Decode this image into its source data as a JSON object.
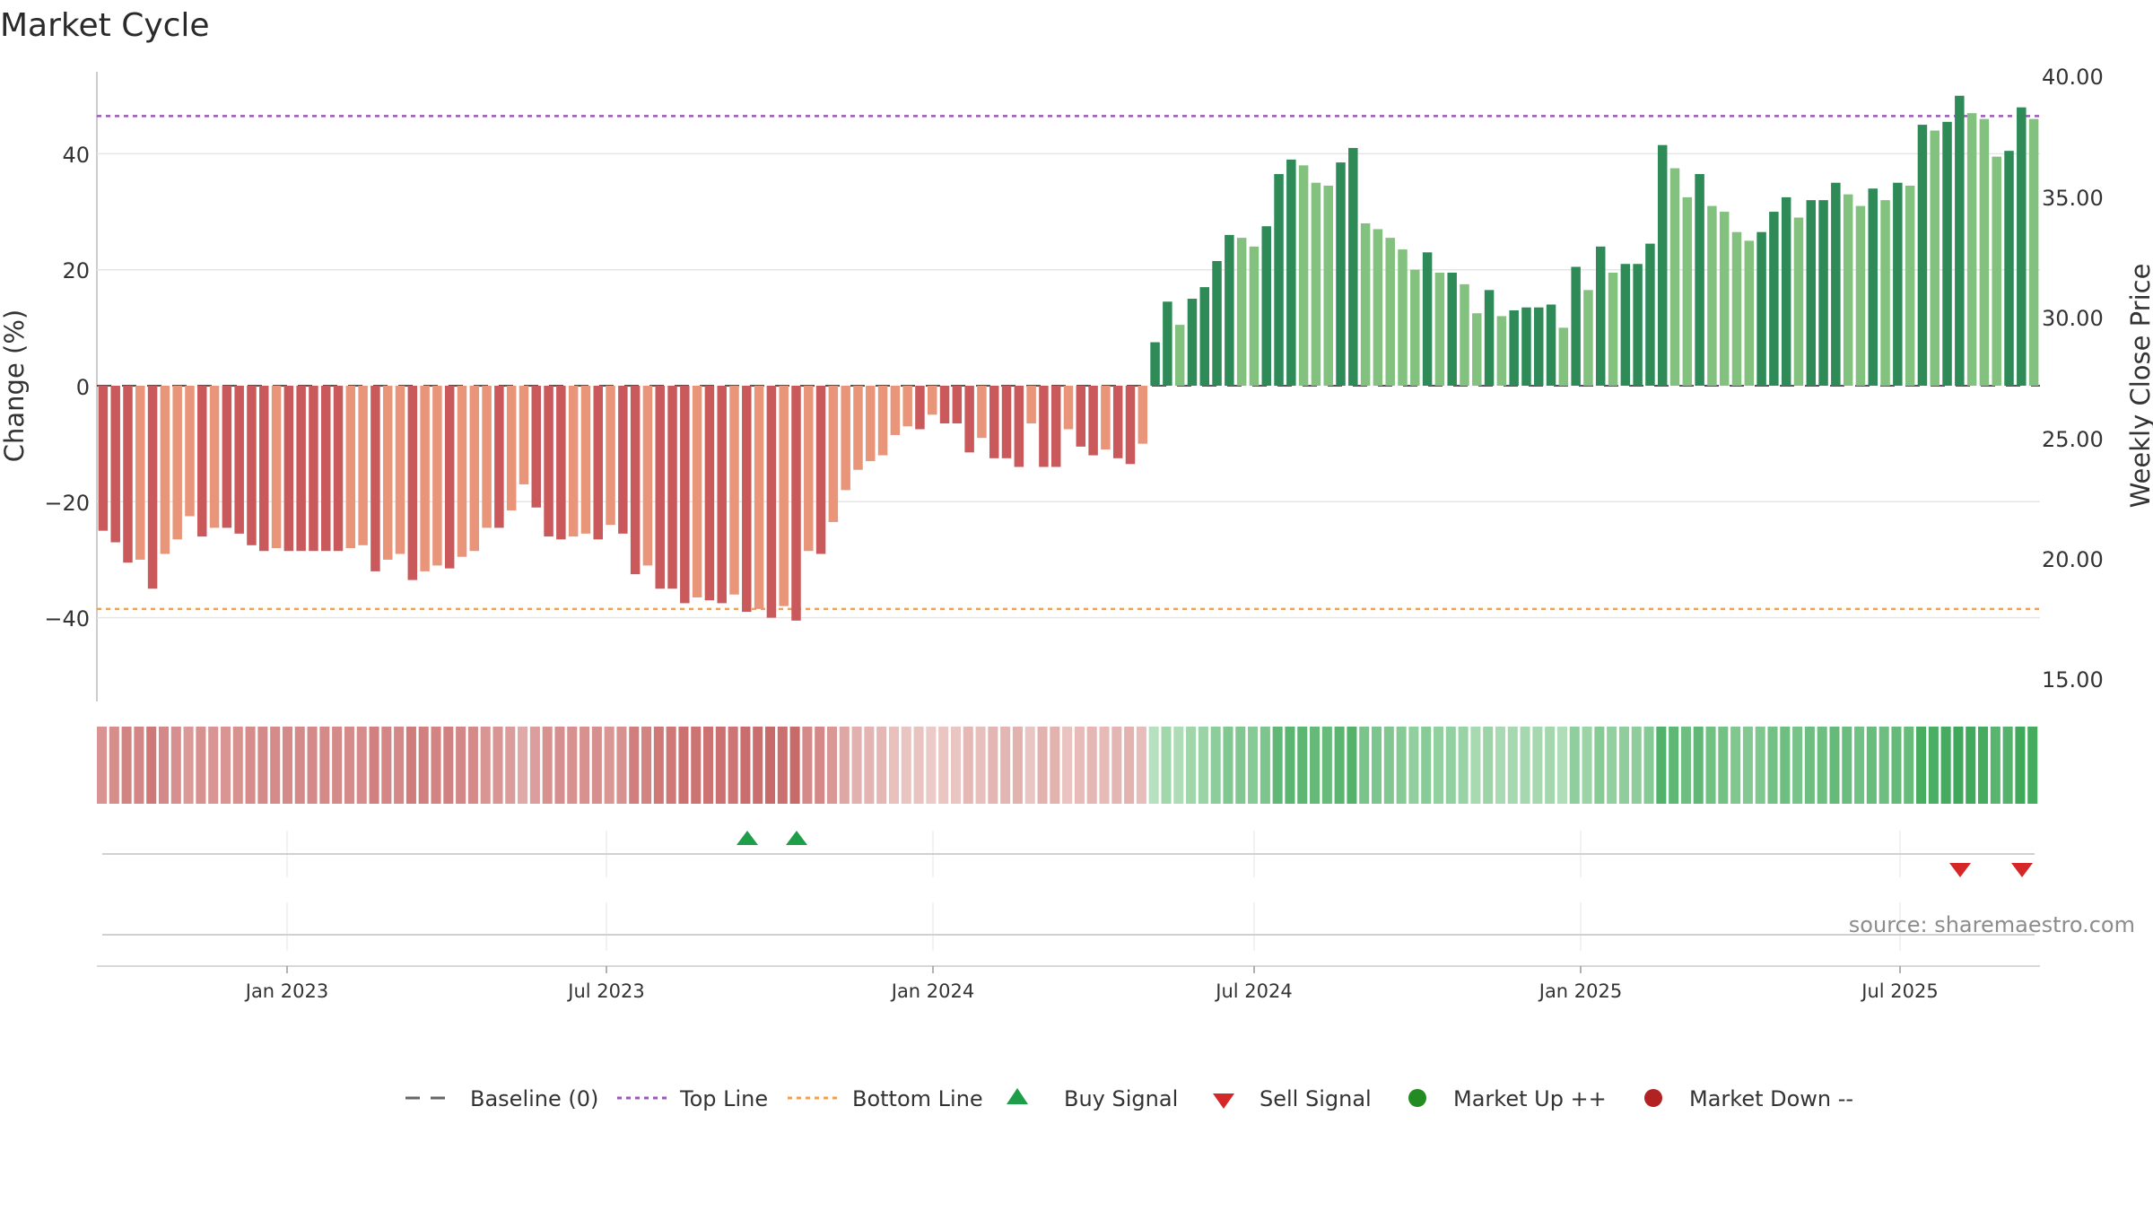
{
  "chart_data": {
    "type": "bar",
    "title": "Market Cycle",
    "ylabel_left": "Change (%)",
    "ylabel_right": "Weekly Close Price",
    "ylim_left": [
      -54,
      54
    ],
    "ylim_right": [
      15,
      40
    ],
    "yticks_left": [
      "40",
      "20",
      "0",
      "−20",
      "−40"
    ],
    "yticks_right": [
      "40.00",
      "35.00",
      "30.00",
      "25.00",
      "20.00",
      "15.00"
    ],
    "x_ticks": [
      "Jan 2023",
      "Jul 2023",
      "Jan 2024",
      "Jul 2024",
      "Jan 2025",
      "Jul 2025"
    ],
    "reference_lines": {
      "baseline": 0,
      "top_line": 46.5,
      "bottom_line": -38.5
    },
    "grid": true,
    "source": "source: sharemaestro.com",
    "weekly_change_pct": [
      -25,
      -27,
      -30.5,
      -30,
      -35,
      -29,
      -26.5,
      -22.5,
      -26,
      -24.5,
      -24.5,
      -25.5,
      -27.5,
      -28.5,
      -28,
      -28.5,
      -28.5,
      -28.5,
      -28.5,
      -28.5,
      -28,
      -27.5,
      -32,
      -30,
      -29,
      -33.5,
      -32,
      -31,
      -31.5,
      -29.5,
      -28.5,
      -24.5,
      -24.5,
      -21.5,
      -17,
      -21,
      -26,
      -26.5,
      -26,
      -25.5,
      -26.5,
      -24,
      -25.5,
      -32.5,
      -31,
      -35,
      -35,
      -37.5,
      -36.5,
      -37,
      -37.5,
      -36,
      -39,
      -38.5,
      -40,
      -38,
      -40.5,
      -28.5,
      -29,
      -23.5,
      -18,
      -14.5,
      -13,
      -12,
      -8.5,
      -7,
      -7.5,
      -5,
      -6.5,
      -6.5,
      -11.5,
      -9,
      -12.5,
      -12.5,
      -14,
      -6.5,
      -14,
      -14,
      -7.5,
      -10.5,
      -12,
      -11,
      -12.5,
      -13.5,
      -10,
      7.5,
      14.5,
      10.5,
      15,
      17,
      21.5,
      26,
      25.5,
      24,
      27.5,
      36.5,
      39,
      38,
      35,
      34.5,
      38.5,
      41,
      28,
      27,
      25.5,
      23.5,
      20,
      23,
      19.5,
      19.5,
      17.5,
      12.5,
      16.5,
      12,
      13,
      13.5,
      13.5,
      14,
      10,
      20.5,
      16.5,
      24,
      19.5,
      21,
      21,
      24.5,
      41.5,
      37.5,
      32.5,
      36.5,
      31,
      30,
      26.5,
      25,
      26.5,
      30,
      32.5,
      29,
      32,
      32,
      35,
      33,
      31,
      34,
      32,
      35,
      34.5,
      45,
      44,
      45.5,
      50,
      47,
      46,
      39.5,
      40.5,
      48,
      46
    ],
    "buy_signals": [
      "Oct 2023",
      "Nov 2023"
    ],
    "sell_signals": [
      "Aug 2025",
      "Sep 2025"
    ],
    "legend": [
      "Baseline (0)",
      "Top Line",
      "Bottom Line",
      "Buy Signal",
      "Sell Signal",
      "Market Up ++",
      "Market Down --"
    ],
    "colors": {
      "down_strong": "#c9595b",
      "down_light": "#e8957a",
      "up_strong": "#2e8b57",
      "up_light": "#82c27e",
      "top_line": "#9b59b6",
      "bottom_line": "#f0a050",
      "baseline": "#555555",
      "buy": "#1f9e4a",
      "sell": "#d62728",
      "market_up": "#228b22",
      "market_down": "#b22222"
    }
  }
}
